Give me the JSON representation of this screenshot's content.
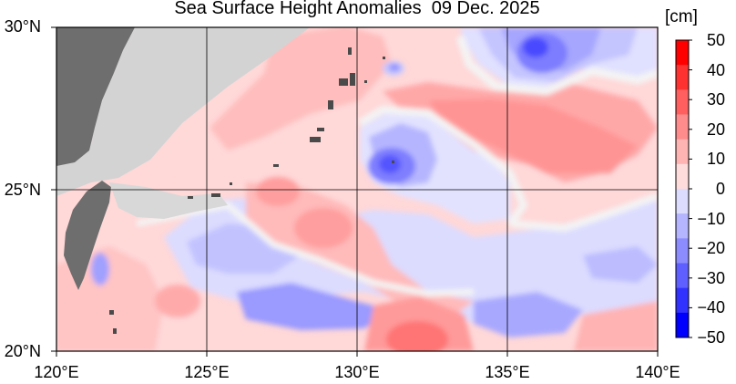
{
  "title": "Sea Surface Height Anomalies  09 Dec. 2025",
  "unit": "[cm]",
  "lat_labels": [
    "30°N",
    "25°N",
    "20°N"
  ],
  "lon_labels": [
    "120°E",
    "125°E",
    "130°E",
    "135°E",
    "140°E"
  ],
  "colorbar": {
    "ticks": [
      "50",
      "40",
      "30",
      "20",
      "10",
      "0",
      "−10",
      "−20",
      "−30",
      "−40",
      "−50"
    ],
    "colors": [
      "#ff0000",
      "#ff3232",
      "#ff5f5f",
      "#ff8c8c",
      "#ffb4b4",
      "#ffdcdc",
      "#dcdcff",
      "#b4b4ff",
      "#8c8cff",
      "#5f5fff",
      "#3232ff",
      "#0000ff"
    ]
  },
  "colors": {
    "land_main": "#6e6e6e",
    "land_region": "#d3d3d3",
    "ocean_base": "#ffd6d6",
    "neutral": "#f2f2f2"
  }
}
